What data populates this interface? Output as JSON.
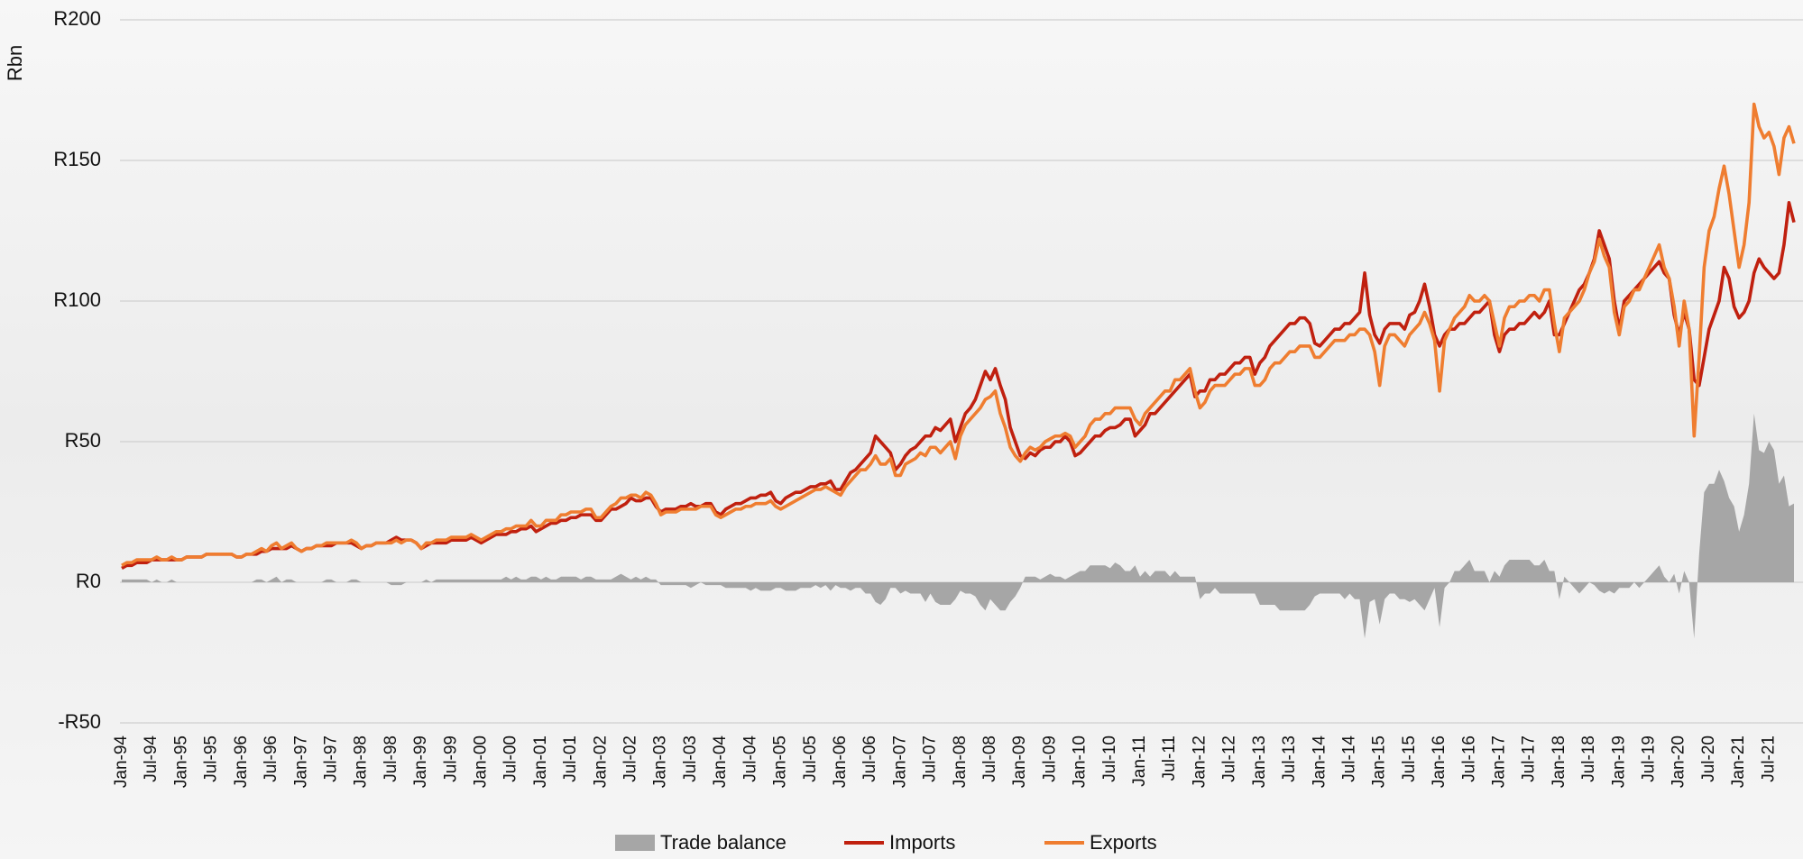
{
  "chart_data": {
    "type": "line",
    "y_label": "Rbn",
    "ylim": [
      -50,
      200
    ],
    "yticks": [
      {
        "value": -50,
        "label": "-R50"
      },
      {
        "value": 0,
        "label": "R0"
      },
      {
        "value": 50,
        "label": "R50"
      },
      {
        "value": 100,
        "label": "R100"
      },
      {
        "value": 150,
        "label": "R150"
      },
      {
        "value": 200,
        "label": "R200"
      }
    ],
    "grid": true,
    "legend": "bottom",
    "categories": [
      "Jan-94",
      null,
      null,
      null,
      null,
      null,
      "Jul-94",
      null,
      null,
      null,
      null,
      null,
      "Jan-95",
      null,
      null,
      null,
      null,
      null,
      "Jul-95",
      null,
      null,
      null,
      null,
      null,
      "Jan-96",
      null,
      null,
      null,
      null,
      null,
      "Jul-96",
      null,
      null,
      null,
      null,
      null,
      "Jan-97",
      null,
      null,
      null,
      null,
      null,
      "Jul-97",
      null,
      null,
      null,
      null,
      null,
      "Jan-98",
      null,
      null,
      null,
      null,
      null,
      "Jul-98",
      null,
      null,
      null,
      null,
      null,
      "Jan-99",
      null,
      null,
      null,
      null,
      null,
      "Jul-99",
      null,
      null,
      null,
      null,
      null,
      "Jan-00",
      null,
      null,
      null,
      null,
      null,
      "Jul-00",
      null,
      null,
      null,
      null,
      null,
      "Jan-01",
      null,
      null,
      null,
      null,
      null,
      "Jul-01",
      null,
      null,
      null,
      null,
      null,
      "Jan-02",
      null,
      null,
      null,
      null,
      null,
      "Jul-02",
      null,
      null,
      null,
      null,
      null,
      "Jan-03",
      null,
      null,
      null,
      null,
      null,
      "Jul-03",
      null,
      null,
      null,
      null,
      null,
      "Jan-04",
      null,
      null,
      null,
      null,
      null,
      "Jul-04",
      null,
      null,
      null,
      null,
      null,
      "Jan-05",
      null,
      null,
      null,
      null,
      null,
      "Jul-05",
      null,
      null,
      null,
      null,
      null,
      "Jan-06",
      null,
      null,
      null,
      null,
      null,
      "Jul-06",
      null,
      null,
      null,
      null,
      null,
      "Jan-07",
      null,
      null,
      null,
      null,
      null,
      "Jul-07",
      null,
      null,
      null,
      null,
      null,
      "Jan-08",
      null,
      null,
      null,
      null,
      null,
      "Jul-08",
      null,
      null,
      null,
      null,
      null,
      "Jan-09",
      null,
      null,
      null,
      null,
      null,
      "Jul-09",
      null,
      null,
      null,
      null,
      null,
      "Jan-10",
      null,
      null,
      null,
      null,
      null,
      "Jul-10",
      null,
      null,
      null,
      null,
      null,
      "Jan-11",
      null,
      null,
      null,
      null,
      null,
      "Jul-11",
      null,
      null,
      null,
      null,
      null,
      "Jan-12",
      null,
      null,
      null,
      null,
      null,
      "Jul-12",
      null,
      null,
      null,
      null,
      null,
      "Jan-13",
      null,
      null,
      null,
      null,
      null,
      "Jul-13",
      null,
      null,
      null,
      null,
      null,
      "Jan-14",
      null,
      null,
      null,
      null,
      null,
      "Jul-14",
      null,
      null,
      null,
      null,
      null,
      "Jan-15",
      null,
      null,
      null,
      null,
      null,
      "Jul-15",
      null,
      null,
      null,
      null,
      null,
      "Jan-16",
      null,
      null,
      null,
      null,
      null,
      "Jul-16",
      null,
      null,
      null,
      null,
      null,
      "Jan-17",
      null,
      null,
      null,
      null,
      null,
      "Jul-17",
      null,
      null,
      null,
      null,
      null,
      "Jan-18",
      null,
      null,
      null,
      null,
      null,
      "Jul-18",
      null,
      null,
      null,
      null,
      null,
      "Jan-19",
      null,
      null,
      null,
      null,
      null,
      "Jul-19",
      null,
      null,
      null,
      null,
      null,
      "Jan-20",
      null,
      null,
      null,
      null,
      null,
      "Jul-20",
      null,
      null,
      null,
      null,
      null,
      "Jan-21",
      null,
      null,
      null,
      null,
      null,
      "Jul-21",
      null,
      null,
      null,
      null,
      null
    ],
    "series": [
      {
        "name": "Trade balance",
        "type": "area",
        "color": "#a6a6a6",
        "values": [
          1,
          1,
          1,
          1,
          1,
          1,
          0,
          1,
          0,
          0,
          1,
          0,
          0,
          0,
          0,
          0,
          0,
          0,
          0,
          0,
          0,
          0,
          0,
          0,
          0,
          0,
          0,
          1,
          1,
          0,
          1,
          2,
          0,
          1,
          1,
          0,
          0,
          0,
          0,
          0,
          0,
          1,
          1,
          0,
          0,
          0,
          1,
          1,
          0,
          0,
          0,
          0,
          0,
          0,
          -1,
          -1,
          -1,
          0,
          0,
          0,
          0,
          1,
          0,
          1,
          1,
          1,
          1,
          1,
          1,
          1,
          1,
          1,
          1,
          1,
          1,
          1,
          1,
          2,
          1,
          2,
          1,
          1,
          2,
          2,
          1,
          2,
          1,
          1,
          2,
          2,
          2,
          2,
          1,
          2,
          2,
          1,
          1,
          1,
          1,
          2,
          3,
          2,
          1,
          2,
          1,
          2,
          1,
          1,
          -1,
          -1,
          -1,
          -1,
          -1,
          -1,
          -2,
          -1,
          0,
          -1,
          -1,
          -1,
          -1,
          -2,
          -2,
          -2,
          -2,
          -2,
          -3,
          -2,
          -3,
          -3,
          -3,
          -2,
          -2,
          -3,
          -3,
          -3,
          -2,
          -2,
          -2,
          -1,
          -2,
          -1,
          -3,
          -1,
          -2,
          -2,
          -3,
          -2,
          -2,
          -4,
          -4,
          -7,
          -8,
          -6,
          -2,
          -2,
          -4,
          -3,
          -4,
          -4,
          -4,
          -7,
          -4,
          -7,
          -8,
          -8,
          -8,
          -6,
          -3,
          -4,
          -4,
          -5,
          -8,
          -10,
          -6,
          -8,
          -10,
          -10,
          -7,
          -5,
          -2,
          2,
          2,
          2,
          1,
          2,
          3,
          2,
          2,
          1,
          2,
          3,
          4,
          4,
          6,
          6,
          6,
          6,
          5,
          7,
          6,
          4,
          4,
          6,
          2,
          4,
          2,
          4,
          4,
          4,
          2,
          4,
          2,
          2,
          2,
          2,
          -6,
          -4,
          -4,
          -2,
          -4,
          -4,
          -4,
          -4,
          -4,
          -4,
          -4,
          -4,
          -8,
          -8,
          -8,
          -8,
          -10,
          -10,
          -10,
          -10,
          -10,
          -10,
          -8,
          -5,
          -4,
          -4,
          -4,
          -4,
          -4,
          -6,
          -4,
          -6,
          -6,
          -20,
          -7,
          -6,
          -15,
          -6,
          -4,
          -4,
          -6,
          -6,
          -7,
          -6,
          -8,
          -10,
          -6,
          -2,
          -16,
          -2,
          0,
          4,
          4,
          6,
          8,
          4,
          4,
          4,
          0,
          4,
          2,
          6,
          8,
          8,
          8,
          8,
          8,
          6,
          6,
          8,
          4,
          4,
          -6,
          2,
          0,
          -2,
          -4,
          -2,
          0,
          -1,
          -3,
          -4,
          -3,
          -4,
          -2,
          -2,
          -2,
          0,
          -2,
          0,
          2,
          4,
          6,
          2,
          0,
          3,
          -4,
          4,
          0,
          -20,
          10,
          32,
          35,
          35,
          40,
          36,
          30,
          27,
          18,
          24,
          35,
          60,
          47,
          46,
          50,
          47,
          35,
          38,
          27,
          28
        ]
      },
      {
        "name": "Imports",
        "type": "line",
        "color": "#c0200f",
        "values": [
          5,
          6,
          6,
          7,
          7,
          7,
          8,
          8,
          8,
          8,
          8,
          8,
          8,
          9,
          9,
          9,
          9,
          10,
          10,
          10,
          10,
          10,
          10,
          9,
          9,
          10,
          10,
          10,
          11,
          11,
          12,
          12,
          12,
          12,
          13,
          12,
          11,
          12,
          12,
          13,
          13,
          13,
          13,
          14,
          14,
          14,
          14,
          13,
          12,
          13,
          13,
          14,
          14,
          14,
          15,
          16,
          15,
          15,
          15,
          14,
          12,
          13,
          14,
          14,
          14,
          14,
          15,
          15,
          15,
          15,
          16,
          15,
          14,
          15,
          16,
          17,
          17,
          17,
          18,
          18,
          19,
          19,
          20,
          18,
          19,
          20,
          21,
          21,
          22,
          22,
          23,
          23,
          24,
          24,
          24,
          22,
          22,
          24,
          26,
          26,
          27,
          28,
          30,
          29,
          29,
          30,
          30,
          27,
          25,
          26,
          26,
          26,
          27,
          27,
          28,
          27,
          27,
          28,
          28,
          25,
          24,
          26,
          27,
          28,
          28,
          29,
          30,
          30,
          31,
          31,
          32,
          29,
          28,
          30,
          31,
          32,
          32,
          33,
          34,
          34,
          35,
          35,
          36,
          33,
          33,
          36,
          39,
          40,
          42,
          44,
          46,
          52,
          50,
          48,
          46,
          40,
          42,
          45,
          47,
          48,
          50,
          52,
          52,
          55,
          54,
          56,
          58,
          50,
          55,
          60,
          62,
          65,
          70,
          75,
          72,
          76,
          70,
          65,
          55,
          50,
          45,
          44,
          46,
          45,
          47,
          48,
          48,
          50,
          50,
          52,
          50,
          45,
          46,
          48,
          50,
          52,
          52,
          54,
          55,
          55,
          56,
          58,
          58,
          52,
          54,
          56,
          60,
          60,
          62,
          64,
          66,
          68,
          70,
          72,
          74,
          66,
          68,
          68,
          72,
          72,
          74,
          74,
          76,
          78,
          78,
          80,
          80,
          74,
          78,
          80,
          84,
          86,
          88,
          90,
          92,
          92,
          94,
          94,
          92,
          85,
          84,
          86,
          88,
          90,
          90,
          92,
          92,
          94,
          96,
          110,
          95,
          88,
          85,
          90,
          92,
          92,
          92,
          90,
          95,
          96,
          100,
          106,
          98,
          88,
          84,
          88,
          90,
          90,
          92,
          92,
          94,
          96,
          96,
          98,
          100,
          88,
          82,
          88,
          90,
          90,
          92,
          92,
          94,
          96,
          94,
          96,
          100,
          88,
          88,
          92,
          96,
          100,
          104,
          106,
          110,
          115,
          125,
          120,
          115,
          100,
          90,
          100,
          102,
          104,
          106,
          108,
          110,
          112,
          114,
          110,
          108,
          95,
          88,
          96,
          90,
          72,
          70,
          80,
          90,
          95,
          100,
          112,
          108,
          98,
          94,
          96,
          100,
          110,
          115,
          112,
          110,
          108,
          110,
          120,
          135,
          128
        ]
      },
      {
        "name": "Exports",
        "type": "line",
        "color": "#ef7d30",
        "values": [
          6,
          7,
          7,
          8,
          8,
          8,
          8,
          9,
          8,
          8,
          9,
          8,
          8,
          9,
          9,
          9,
          9,
          10,
          10,
          10,
          10,
          10,
          10,
          9,
          9,
          10,
          10,
          11,
          12,
          11,
          13,
          14,
          12,
          13,
          14,
          12,
          11,
          12,
          12,
          13,
          13,
          14,
          14,
          14,
          14,
          14,
          15,
          14,
          12,
          13,
          13,
          14,
          14,
          14,
          14,
          15,
          14,
          15,
          15,
          14,
          12,
          14,
          14,
          15,
          15,
          15,
          16,
          16,
          16,
          16,
          17,
          16,
          15,
          16,
          17,
          18,
          18,
          19,
          19,
          20,
          20,
          20,
          22,
          20,
          20,
          22,
          22,
          22,
          24,
          24,
          25,
          25,
          25,
          26,
          26,
          23,
          23,
          25,
          27,
          28,
          30,
          30,
          31,
          31,
          30,
          32,
          31,
          28,
          24,
          25,
          25,
          25,
          26,
          26,
          26,
          26,
          27,
          27,
          27,
          24,
          23,
          24,
          25,
          26,
          26,
          27,
          27,
          28,
          28,
          28,
          29,
          27,
          26,
          27,
          28,
          29,
          30,
          31,
          32,
          33,
          33,
          34,
          33,
          32,
          31,
          34,
          36,
          38,
          40,
          40,
          42,
          45,
          42,
          42,
          44,
          38,
          38,
          42,
          43,
          44,
          46,
          45,
          48,
          48,
          46,
          48,
          50,
          44,
          52,
          56,
          58,
          60,
          62,
          65,
          66,
          68,
          60,
          55,
          48,
          45,
          43,
          46,
          48,
          47,
          48,
          50,
          51,
          52,
          52,
          53,
          52,
          48,
          50,
          52,
          56,
          58,
          58,
          60,
          60,
          62,
          62,
          62,
          62,
          58,
          56,
          60,
          62,
          64,
          66,
          68,
          68,
          72,
          72,
          74,
          76,
          68,
          62,
          64,
          68,
          70,
          70,
          70,
          72,
          74,
          74,
          76,
          76,
          70,
          70,
          72,
          76,
          78,
          78,
          80,
          82,
          82,
          84,
          84,
          84,
          80,
          80,
          82,
          84,
          86,
          86,
          86,
          88,
          88,
          90,
          90,
          88,
          82,
          70,
          84,
          88,
          88,
          86,
          84,
          88,
          90,
          92,
          96,
          92,
          86,
          68,
          86,
          90,
          94,
          96,
          98,
          102,
          100,
          100,
          102,
          100,
          92,
          84,
          94,
          98,
          98,
          100,
          100,
          102,
          102,
          100,
          104,
          104,
          92,
          82,
          94,
          96,
          98,
          100,
          104,
          110,
          114,
          122,
          116,
          112,
          96,
          88,
          98,
          100,
          104,
          104,
          108,
          112,
          116,
          120,
          112,
          108,
          98,
          84,
          100,
          90,
          52,
          80,
          112,
          125,
          130,
          140,
          148,
          138,
          125,
          112,
          120,
          135,
          170,
          162,
          158,
          160,
          155,
          145,
          158,
          162,
          156
        ]
      }
    ]
  }
}
